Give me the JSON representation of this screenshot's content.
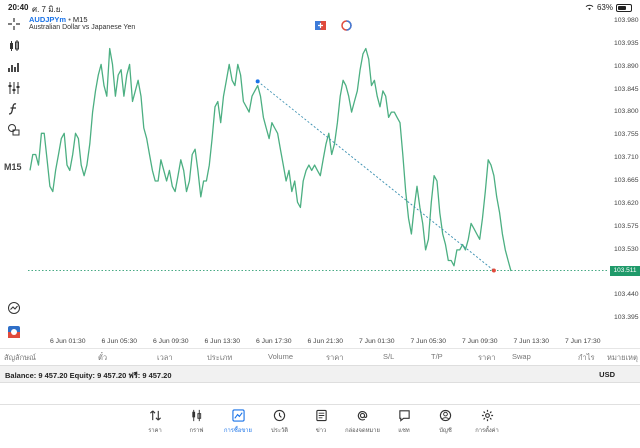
{
  "status": {
    "time": "20:40",
    "date": "ศ. 7 มิ.ย.",
    "battery": "63%",
    "battery_level": 0.63
  },
  "chart": {
    "symbol": "AUDJPYm",
    "separator": "•",
    "timeframe_tag": "M15",
    "description": "Australian Dollar vs Japanese Yen",
    "timeframe_label": "M15",
    "line_color": "#4caf82",
    "price_labels": [
      "103.980",
      "103.935",
      "103.890",
      "103.845",
      "103.800",
      "103.755",
      "103.710",
      "103.665",
      "103.620",
      "103.575",
      "103.530",
      "103.485",
      "103.440",
      "103.395"
    ],
    "current_price": "103.511",
    "time_labels": [
      "6 Jun 01:30",
      "6 Jun 05:30",
      "6 Jun 09:30",
      "6 Jun 13:30",
      "6 Jun 17:30",
      "6 Jun 21:30",
      "7 Jun 01:30",
      "7 Jun 05:30",
      "7 Jun 09:30",
      "7 Jun 13:30",
      "7 Jun 17:30"
    ]
  },
  "chart_data": {
    "type": "line",
    "ylim": [
      103.38,
      103.995
    ],
    "values": [
      103.7,
      103.73,
      103.73,
      103.71,
      103.77,
      103.77,
      103.72,
      103.67,
      103.66,
      103.7,
      103.73,
      103.76,
      103.77,
      103.71,
      103.7,
      103.73,
      103.77,
      103.76,
      103.71,
      103.69,
      103.71,
      103.75,
      103.81,
      103.85,
      103.88,
      103.9,
      103.86,
      103.84,
      103.93,
      103.9,
      103.84,
      103.88,
      103.89,
      103.84,
      103.88,
      103.9,
      103.83,
      103.85,
      103.87,
      103.84,
      103.78,
      103.76,
      103.73,
      103.7,
      103.68,
      103.68,
      103.72,
      103.7,
      103.68,
      103.7,
      103.67,
      103.66,
      103.69,
      103.72,
      103.7,
      103.66,
      103.68,
      103.73,
      103.74,
      103.7,
      103.65,
      103.68,
      103.68,
      103.71,
      103.76,
      103.82,
      103.83,
      103.79,
      103.84,
      103.87,
      103.9,
      103.87,
      103.86,
      103.9,
      103.88,
      103.83,
      103.82,
      103.81,
      103.84,
      103.85,
      103.86,
      103.84,
      103.8,
      103.78,
      103.76,
      103.79,
      103.78,
      103.77,
      103.74,
      103.71,
      103.68,
      103.7,
      103.66,
      103.68,
      103.64,
      103.63,
      103.68,
      103.7,
      103.71,
      103.7,
      103.71,
      103.7,
      103.69,
      103.72,
      103.75,
      103.77,
      103.73,
      103.75,
      103.79,
      103.84,
      103.87,
      103.86,
      103.84,
      103.81,
      103.83,
      103.85,
      103.89,
      103.92,
      103.93,
      103.91,
      103.86,
      103.87,
      103.84,
      103.82,
      103.85,
      103.84,
      103.8,
      103.81,
      103.81,
      103.8,
      103.79,
      103.73,
      103.66,
      103.61,
      103.58,
      103.63,
      103.67,
      103.63,
      103.6,
      103.55,
      103.57,
      103.64,
      103.69,
      103.68,
      103.62,
      103.58,
      103.56,
      103.53,
      103.53,
      103.52,
      103.55,
      103.55,
      103.56,
      103.55,
      103.57,
      103.6,
      103.59,
      103.58,
      103.57,
      103.61,
      103.66,
      103.72,
      103.71,
      103.69,
      103.65,
      103.62,
      103.58,
      103.55,
      103.53,
      103.51
    ],
    "trendline": {
      "from": [
        80,
        103.868
      ],
      "to": [
        163,
        103.511
      ]
    },
    "current_price": 103.511,
    "grid": false,
    "legend": "none"
  },
  "columns": [
    "สัญลักษณ์",
    "ตั๋ว",
    "เวลา",
    "ประเภท",
    "Volume",
    "ราคา",
    "S/L",
    "T/P",
    "ราคา",
    "Swap",
    "กำไร",
    "หมายเหตุ"
  ],
  "balance": {
    "text": "Balance: 9 457.20 Equity: 9 457.20 ฟรี: 9 457.20",
    "currency": "USD"
  },
  "nav": [
    {
      "label": "ราคา",
      "icon": "quotes-icon"
    },
    {
      "label": "กราฟ",
      "icon": "chart-icon"
    },
    {
      "label": "การซื้อขาย",
      "icon": "trade-icon"
    },
    {
      "label": "ประวัติ",
      "icon": "history-icon"
    },
    {
      "label": "ข่าว",
      "icon": "news-icon"
    },
    {
      "label": "กล่องจดหมาย",
      "icon": "mailbox-icon"
    },
    {
      "label": "แชท",
      "icon": "chat-icon"
    },
    {
      "label": "บัญชี",
      "icon": "account-icon"
    },
    {
      "label": "การตั้งค่า",
      "icon": "settings-icon"
    }
  ]
}
